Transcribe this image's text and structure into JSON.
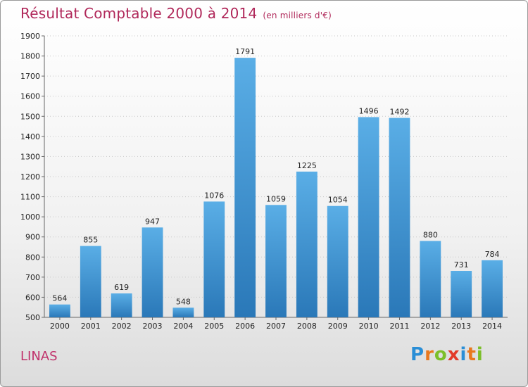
{
  "chart_data": {
    "type": "bar",
    "title": "Résultat Comptable 2000 à 2014",
    "unit": "(en milliers d'€)",
    "categories": [
      "2000",
      "2001",
      "2002",
      "2003",
      "2004",
      "2005",
      "2006",
      "2007",
      "2008",
      "2009",
      "2010",
      "2011",
      "2012",
      "2013",
      "2014"
    ],
    "values": [
      564,
      855,
      619,
      947,
      548,
      1076,
      1791,
      1059,
      1225,
      1054,
      1496,
      1492,
      880,
      731,
      784
    ],
    "ylim": [
      500,
      1900
    ],
    "yticks": [
      500,
      600,
      700,
      800,
      900,
      1000,
      1100,
      1200,
      1300,
      1400,
      1500,
      1600,
      1700,
      1800,
      1900
    ],
    "grid": true,
    "colors": {
      "bar_light": "#5aaee6",
      "bar_dark": "#2a78b8",
      "title": "#b0285a"
    }
  },
  "commune": "LINAS",
  "logo": [
    "P",
    "r",
    "o",
    "x",
    "i",
    "t",
    "i"
  ]
}
